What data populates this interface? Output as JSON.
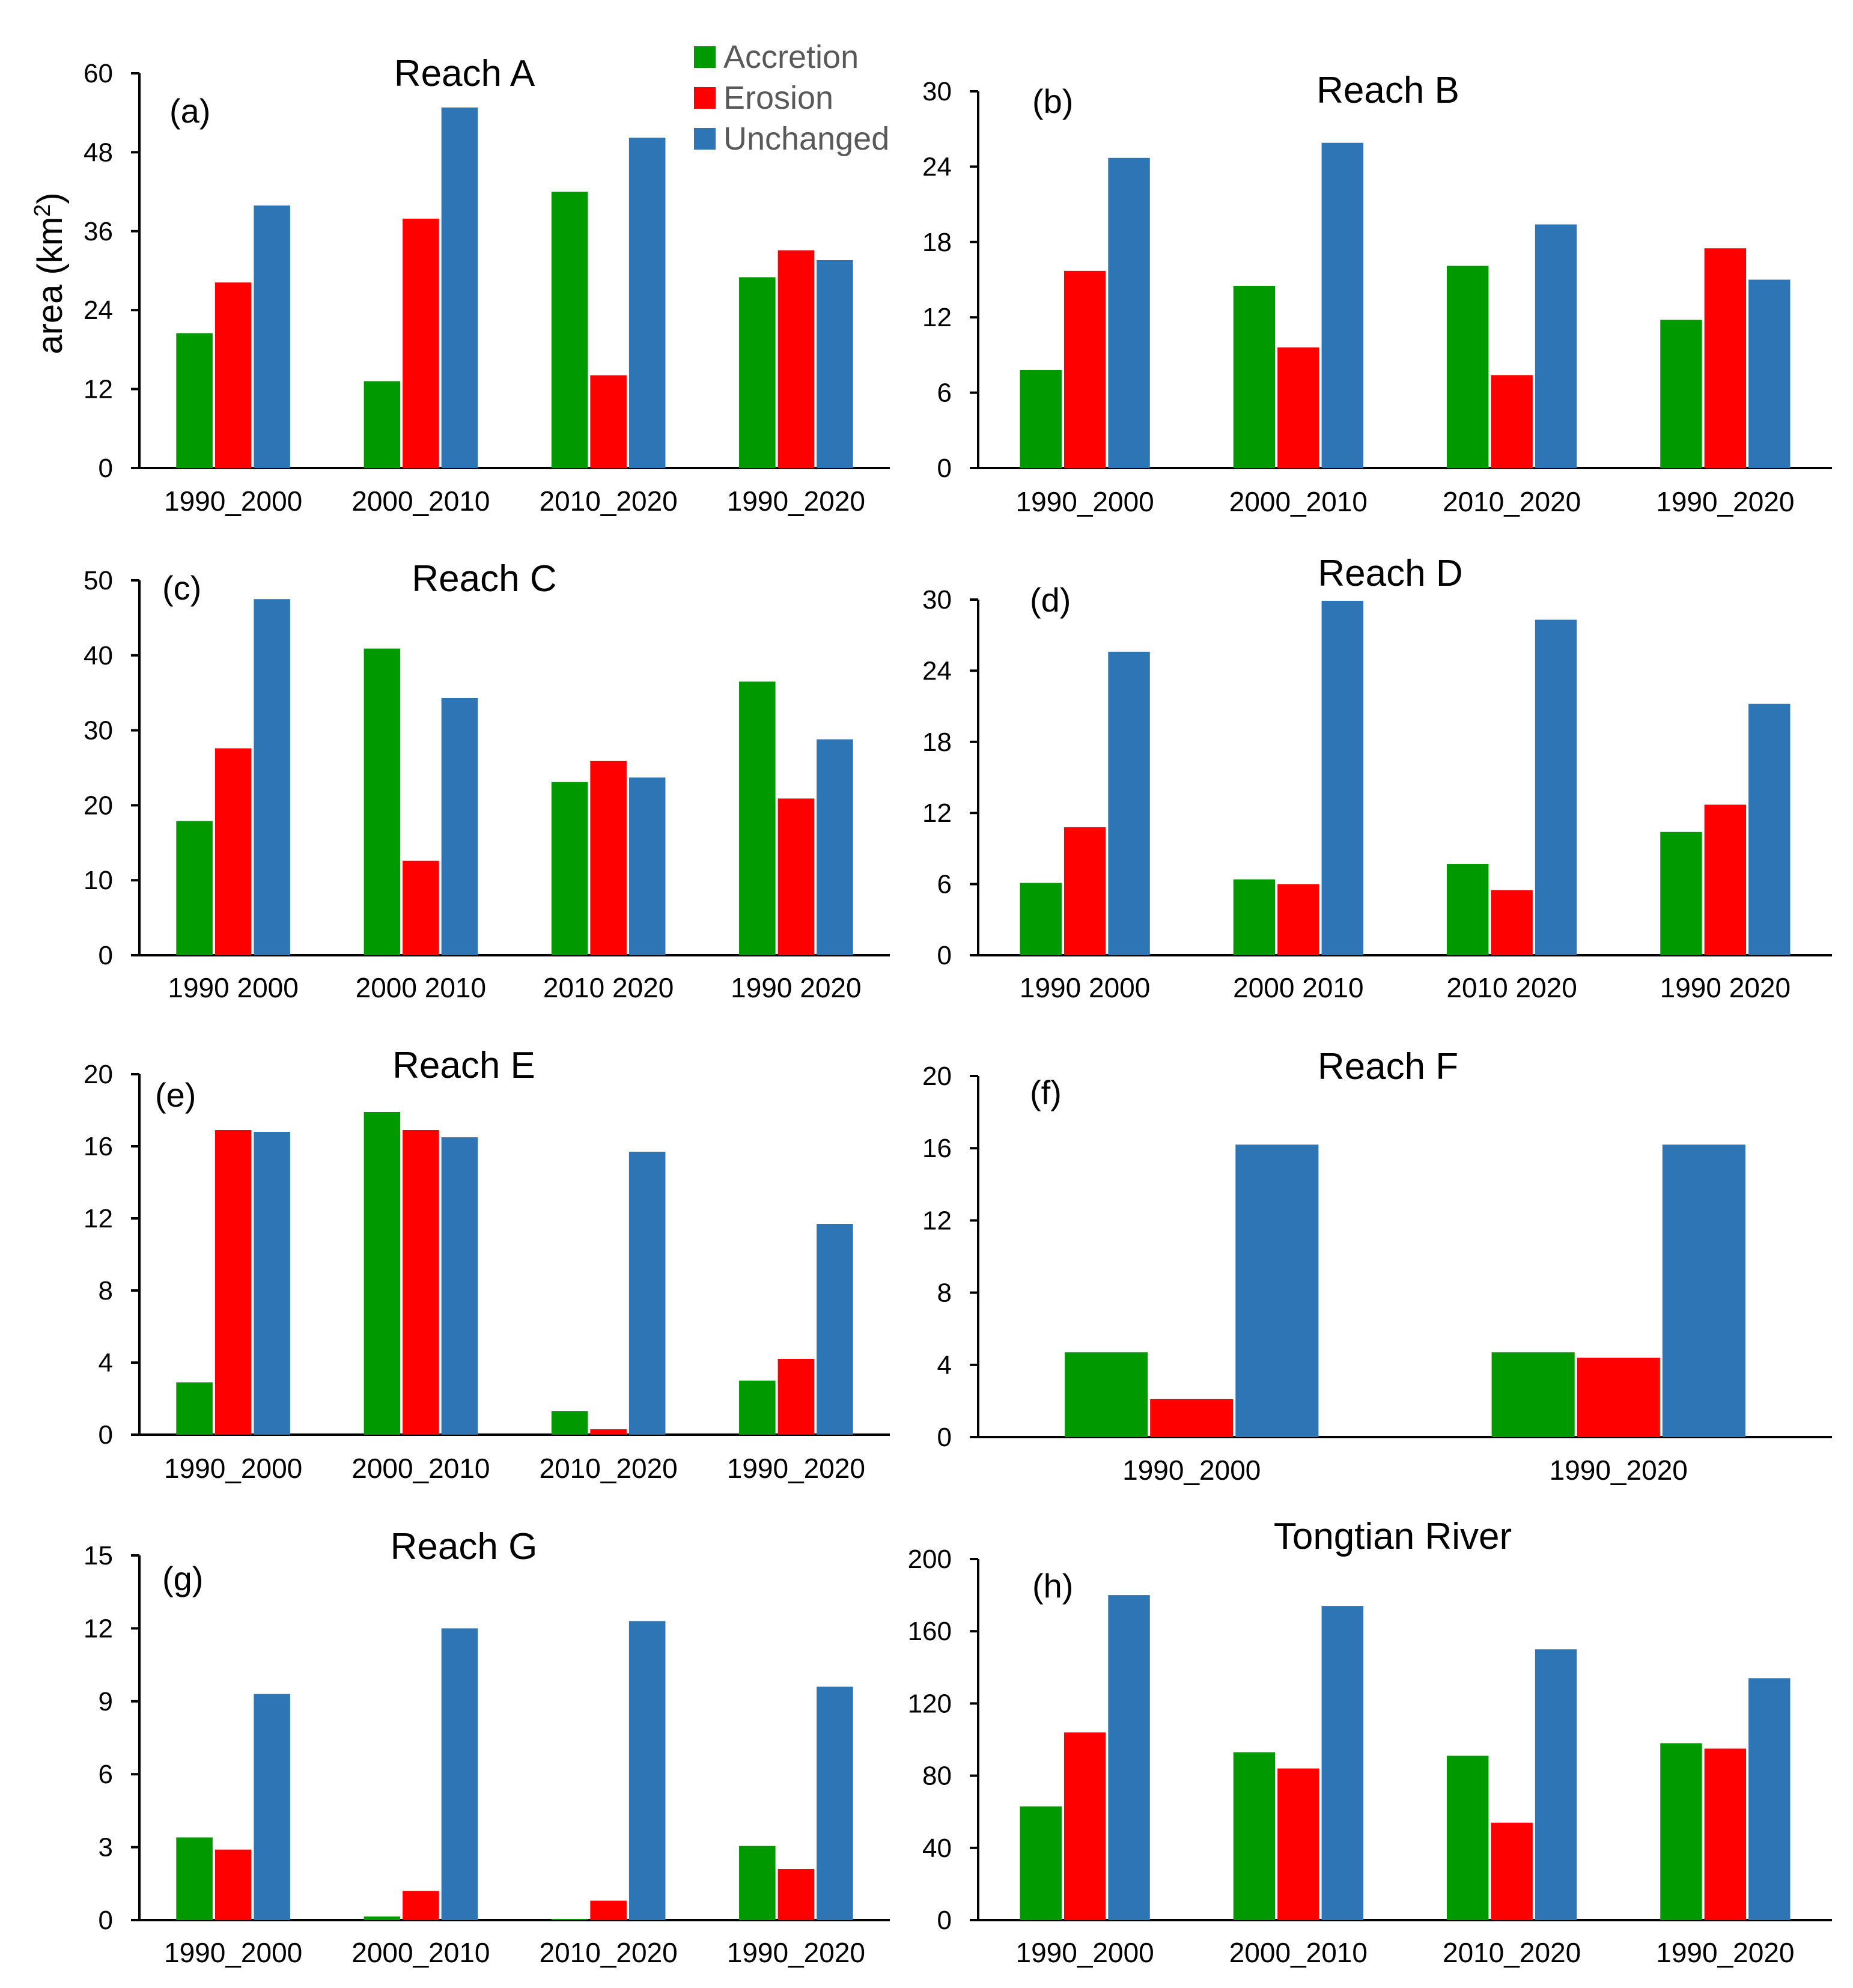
{
  "figure": {
    "ylabel": "area (km",
    "ylabel_sup": "2",
    "ylabel_close": ")"
  },
  "legend": [
    {
      "name": "Accretion",
      "color": "#009900"
    },
    {
      "name": "Erosion",
      "color": "#ff0000"
    },
    {
      "name": "Unchanged",
      "color": "#2e75b6"
    }
  ],
  "chart_data": [
    {
      "type": "bar",
      "panel": "(a)",
      "title": "Reach A",
      "categories": [
        "1990_2000",
        "2000_2010",
        "2010_2020",
        "1990_2020"
      ],
      "yticks": [
        0,
        12,
        24,
        36,
        48,
        60
      ],
      "ylim": [
        0,
        60
      ],
      "series": [
        {
          "name": "Accretion",
          "values": [
            20.5,
            13.2,
            42,
            29
          ]
        },
        {
          "name": "Erosion",
          "values": [
            28.2,
            37.9,
            14.1,
            33.1
          ]
        },
        {
          "name": "Unchanged",
          "values": [
            39.9,
            54.8,
            50.2,
            31.6
          ]
        }
      ]
    },
    {
      "type": "bar",
      "panel": "(b)",
      "title": "Reach B",
      "categories": [
        "1990_2000",
        "2000_2010",
        "2010_2020",
        "1990_2020"
      ],
      "yticks": [
        0,
        6,
        12,
        18,
        24,
        30
      ],
      "ylim": [
        0,
        30
      ],
      "series": [
        {
          "name": "Accretion",
          "values": [
            7.8,
            14.5,
            16.1,
            11.8
          ]
        },
        {
          "name": "Erosion",
          "values": [
            15.7,
            9.6,
            7.4,
            17.5
          ]
        },
        {
          "name": "Unchanged",
          "values": [
            24.7,
            25.9,
            19.4,
            15
          ]
        }
      ]
    },
    {
      "type": "bar",
      "panel": "(c)",
      "title": "Reach C",
      "categories": [
        "1990  2000",
        "2000  2010",
        "2010  2020",
        "1990  2020"
      ],
      "yticks": [
        0,
        10,
        20,
        30,
        40,
        50
      ],
      "ylim": [
        0,
        50
      ],
      "series": [
        {
          "name": "Accretion",
          "values": [
            17.9,
            40.9,
            23.1,
            36.5
          ]
        },
        {
          "name": "Erosion",
          "values": [
            27.6,
            12.6,
            25.9,
            20.9
          ]
        },
        {
          "name": "Unchanged",
          "values": [
            47.5,
            34.3,
            23.7,
            28.8
          ]
        }
      ]
    },
    {
      "type": "bar",
      "panel": "(d)",
      "title": "Reach D",
      "categories": [
        "1990  2000",
        "2000  2010",
        "2010  2020",
        "1990  2020"
      ],
      "yticks": [
        0,
        6,
        12,
        18,
        24,
        30
      ],
      "ylim": [
        0,
        30
      ],
      "series": [
        {
          "name": "Accretion",
          "values": [
            6.1,
            6.4,
            7.7,
            10.4
          ]
        },
        {
          "name": "Erosion",
          "values": [
            10.8,
            6,
            5.5,
            12.7
          ]
        },
        {
          "name": "Unchanged",
          "values": [
            25.6,
            29.9,
            28.3,
            21.2
          ]
        }
      ]
    },
    {
      "type": "bar",
      "panel": "(e)",
      "title": "Reach E",
      "categories": [
        "1990_2000",
        "2000_2010",
        "2010_2020",
        "1990_2020"
      ],
      "yticks": [
        0,
        4,
        8,
        12,
        16,
        20
      ],
      "ylim": [
        0,
        20
      ],
      "series": [
        {
          "name": "Accretion",
          "values": [
            2.9,
            17.9,
            1.3,
            3
          ]
        },
        {
          "name": "Erosion",
          "values": [
            16.9,
            16.9,
            0.3,
            4.2
          ]
        },
        {
          "name": "Unchanged",
          "values": [
            16.8,
            16.5,
            15.7,
            11.7
          ]
        }
      ]
    },
    {
      "type": "bar",
      "panel": "(f)",
      "title": "Reach F",
      "categories": [
        "1990_2000",
        "1990_2020"
      ],
      "yticks": [
        0,
        4,
        8,
        12,
        16,
        20
      ],
      "ylim": [
        0,
        20
      ],
      "series": [
        {
          "name": "Accretion",
          "values": [
            4.7,
            4.7
          ]
        },
        {
          "name": "Erosion",
          "values": [
            2.1,
            4.4
          ]
        },
        {
          "name": "Unchanged",
          "values": [
            16.2,
            16.2
          ]
        }
      ]
    },
    {
      "type": "bar",
      "panel": "(g)",
      "title": "Reach G",
      "categories": [
        "1990_2000",
        "2000_2010",
        "2010_2020",
        "1990_2020"
      ],
      "yticks": [
        0,
        3,
        6,
        9,
        12,
        15
      ],
      "ylim": [
        0,
        15
      ],
      "series": [
        {
          "name": "Accretion",
          "values": [
            3.4,
            0.15,
            0.05,
            3.05
          ]
        },
        {
          "name": "Erosion",
          "values": [
            2.9,
            1.2,
            0.8,
            2.1
          ]
        },
        {
          "name": "Unchanged",
          "values": [
            9.3,
            12,
            12.3,
            9.6
          ]
        }
      ]
    },
    {
      "type": "bar",
      "panel": "(h)",
      "title": "Tongtian River",
      "categories": [
        "1990_2000",
        "2000_2010",
        "2010_2020",
        "1990_2020"
      ],
      "yticks": [
        0,
        40,
        80,
        120,
        160,
        200
      ],
      "ylim": [
        0,
        200
      ],
      "series": [
        {
          "name": "Accretion",
          "values": [
            63,
            93,
            91,
            98
          ]
        },
        {
          "name": "Erosion",
          "values": [
            104,
            84,
            54,
            95
          ]
        },
        {
          "name": "Unchanged",
          "values": [
            180,
            174,
            150,
            134
          ]
        }
      ]
    }
  ]
}
